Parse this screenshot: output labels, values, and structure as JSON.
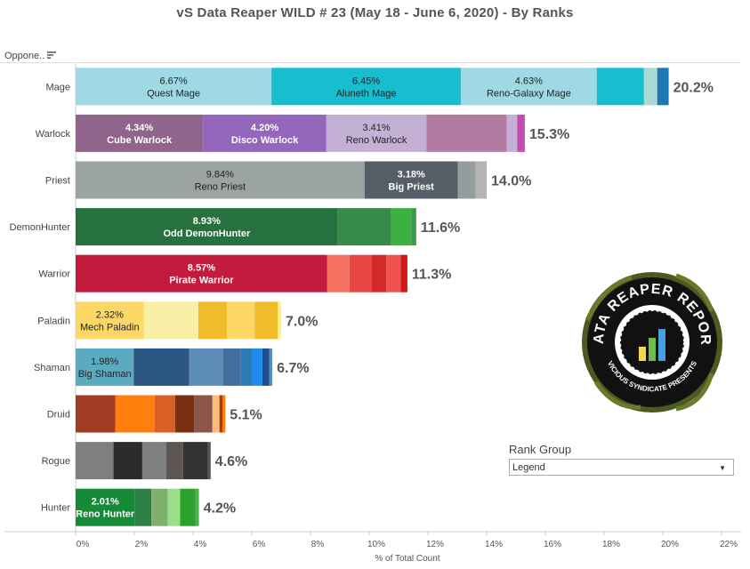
{
  "title": "vS Data Reaper WILD # 23 (May 18 - June 6, 2020) - By Ranks",
  "header": {
    "column_label": "Oppone..",
    "sort_icon": "sort-descending-icon"
  },
  "filter": {
    "label": "Rank Group",
    "selected": "Legend",
    "dropdown_icon": "triangle-down-icon"
  },
  "logo": {
    "text": "DATA REAPER REPORT",
    "subtext": "VICIOUS SYNDICATE PRESENTS"
  },
  "chart_data": {
    "type": "bar",
    "orientation": "horizontal",
    "stacked": true,
    "title": "vS Data Reaper WILD # 23 (May 18 - June 6, 2020) - By Ranks",
    "xlabel": "% of Total Count",
    "ylabel": "Oppone..",
    "xlim": [
      0,
      22
    ],
    "xticks": [
      "0%",
      "2%",
      "4%",
      "6%",
      "8%",
      "10%",
      "12%",
      "14%",
      "16%",
      "18%",
      "20%",
      "22%"
    ],
    "grid": false,
    "categories": [
      "Mage",
      "Warlock",
      "Priest",
      "DemonHunter",
      "Warrior",
      "Paladin",
      "Shaman",
      "Druid",
      "Rogue",
      "Hunter"
    ],
    "totals": [
      "20.2%",
      "15.3%",
      "14.0%",
      "11.6%",
      "11.3%",
      "7.0%",
      "6.7%",
      "5.1%",
      "4.6%",
      "4.2%"
    ],
    "rows": [
      {
        "class": "Mage",
        "segments": [
          {
            "value": 6.67,
            "pct": "6.67%",
            "label": "Quest Mage",
            "color": "#9fd9e5"
          },
          {
            "value": 6.45,
            "pct": "6.45%",
            "label": "Aluneth Mage",
            "color": "#17becf"
          },
          {
            "value": 4.63,
            "pct": "4.63%",
            "label": "Reno-Galaxy Mage",
            "color": "#9fd9e5"
          },
          {
            "value": 1.61,
            "color": "#17becf"
          },
          {
            "value": 0.45,
            "color": "#a9dbd6"
          },
          {
            "value": 0.39,
            "color": "#1f77b4"
          }
        ]
      },
      {
        "class": "Warlock",
        "segments": [
          {
            "value": 4.34,
            "pct": "4.34%",
            "label": "Cube Warlock",
            "color": "#91648c",
            "light": true
          },
          {
            "value": 4.2,
            "pct": "4.20%",
            "label": "Disco Warlock",
            "color": "#9467bd",
            "light": true
          },
          {
            "value": 3.41,
            "pct": "3.41%",
            "label": "Reno Warlock",
            "color": "#c5b0d5"
          },
          {
            "value": 2.73,
            "color": "#b07aa1"
          },
          {
            "value": 0.36,
            "color": "#c5b0d5"
          },
          {
            "value": 0.26,
            "color": "#c44cb0"
          }
        ]
      },
      {
        "class": "Priest",
        "segments": [
          {
            "value": 9.84,
            "pct": "9.84%",
            "label": "Reno Priest",
            "color": "#9ba3a3"
          },
          {
            "value": 3.18,
            "pct": "3.18%",
            "label": "Big Priest",
            "color": "#555e66",
            "light": true
          },
          {
            "value": 0.6,
            "color": "#959c9e"
          },
          {
            "value": 0.38,
            "color": "#b4b4b4"
          }
        ]
      },
      {
        "class": "DemonHunter",
        "segments": [
          {
            "value": 8.93,
            "pct": "8.93%",
            "label": "Odd DemonHunter",
            "color": "#26713e",
            "light": true
          },
          {
            "value": 1.81,
            "color": "#378a4a"
          },
          {
            "value": 0.69,
            "color": "#3cb13f"
          },
          {
            "value": 0.17,
            "color": "#3b9a4a"
          }
        ]
      },
      {
        "class": "Warrior",
        "segments": [
          {
            "value": 8.57,
            "pct": "8.57%",
            "label": "Pirate Warrior",
            "color": "#c21b3d",
            "light": true
          },
          {
            "value": 0.76,
            "color": "#f4705f"
          },
          {
            "value": 0.74,
            "color": "#e84545"
          },
          {
            "value": 0.51,
            "color": "#d42a2a"
          },
          {
            "value": 0.49,
            "color": "#ef5350"
          },
          {
            "value": 0.23,
            "color": "#d01818"
          }
        ]
      },
      {
        "class": "Paladin",
        "segments": [
          {
            "value": 2.32,
            "pct": "2.32%",
            "label": "Mech Paladin",
            "color": "#fdd866"
          },
          {
            "value": 1.86,
            "color": "#f9eea6"
          },
          {
            "value": 0.97,
            "color": "#f0bc29"
          },
          {
            "value": 0.95,
            "color": "#fdd866"
          },
          {
            "value": 0.79,
            "color": "#f0bc29"
          },
          {
            "value": 0.11,
            "color": "#fff57a"
          }
        ]
      },
      {
        "class": "Shaman",
        "segments": [
          {
            "value": 1.98,
            "pct": "1.98%",
            "label": "Big Shaman",
            "color": "#5aabc0"
          },
          {
            "value": 1.89,
            "color": "#2c5782"
          },
          {
            "value": 1.15,
            "color": "#5a8cb5"
          },
          {
            "value": 0.61,
            "color": "#426f9e"
          },
          {
            "value": 0.37,
            "color": "#2b7bb6"
          },
          {
            "value": 0.36,
            "color": "#1e8cf0"
          },
          {
            "value": 0.24,
            "color": "#1f4e8c"
          },
          {
            "value": 0.1,
            "color": "#4a90c8"
          }
        ]
      },
      {
        "class": "Druid",
        "segments": [
          {
            "value": 1.35,
            "color": "#a03d23"
          },
          {
            "value": 1.34,
            "color": "#ff7f0e"
          },
          {
            "value": 0.7,
            "color": "#d95f24"
          },
          {
            "value": 0.65,
            "color": "#7b2f12"
          },
          {
            "value": 0.62,
            "color": "#8c564b"
          },
          {
            "value": 0.24,
            "color": "#ffbb78"
          },
          {
            "value": 0.1,
            "color": "#a83a10"
          },
          {
            "value": 0.1,
            "color": "#ff7f0e"
          }
        ]
      },
      {
        "class": "Rogue",
        "segments": [
          {
            "value": 1.29,
            "color": "#7f7f7f"
          },
          {
            "value": 0.98,
            "color": "#2b2b2b"
          },
          {
            "value": 0.82,
            "color": "#7f7f7f"
          },
          {
            "value": 0.57,
            "color": "#5e5454"
          },
          {
            "value": 0.85,
            "color": "#333333"
          },
          {
            "value": 0.09,
            "color": "#555555"
          }
        ]
      },
      {
        "class": "Hunter",
        "segments": [
          {
            "value": 2.01,
            "pct": "2.01%",
            "label": "Reno Hunter",
            "color": "#168a36",
            "light": true
          },
          {
            "value": 0.57,
            "color": "#2d7f45"
          },
          {
            "value": 0.56,
            "color": "#7fb070"
          },
          {
            "value": 0.42,
            "color": "#98df8a"
          },
          {
            "value": 0.52,
            "color": "#2ca02c"
          },
          {
            "value": 0.12,
            "color": "#4cae4c"
          }
        ]
      }
    ]
  }
}
